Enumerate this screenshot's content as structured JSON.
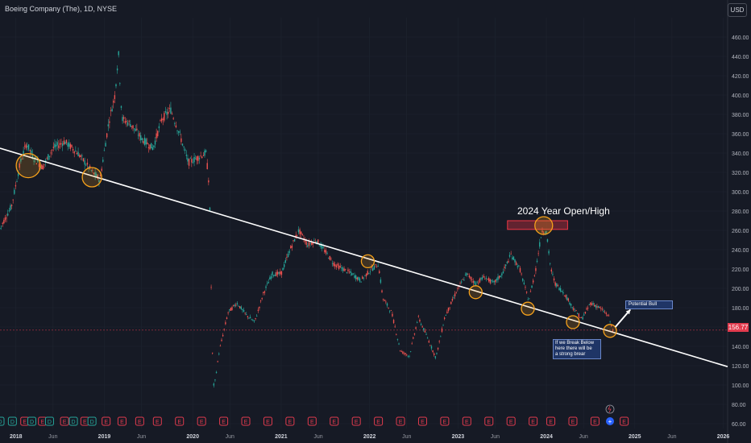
{
  "header": {
    "title": "Boeing Company (The), 1D, NYSE",
    "currency_button": "USD"
  },
  "price_tag": {
    "label": "156.77",
    "color": "#e23b4e"
  },
  "annotations": {
    "year_label": "2024 Year Open/High",
    "potential_bull": "Potential Bull",
    "break_below_lines": [
      "If we Break Below",
      "here there will be",
      "a strong brear"
    ]
  },
  "event_markers": {
    "types": [
      "dividend",
      "earnings"
    ],
    "earnings_letter": "E",
    "dividend_letter": "D",
    "plus_symbol": "+"
  },
  "colors": {
    "background": "#161a25",
    "up": "#26a69a",
    "down": "#ef5350",
    "trendline": "#ffffff",
    "circle": "#f7a21b",
    "grid": "#1f2430"
  },
  "chart_data": {
    "type": "candlestick",
    "symbol": "BA",
    "title": "Boeing Company (The), 1D, NYSE",
    "x_tick_labels": [
      "2018",
      "Jun",
      "2019",
      "Jun",
      "2020",
      "Jun",
      "2021",
      "Jun",
      "2022",
      "Jun",
      "2023",
      "Jun",
      "2024",
      "Jun",
      "2025",
      "Jun",
      "2026"
    ],
    "x_tick_years": [
      2018.0,
      2018.42,
      2019.0,
      2019.42,
      2020.0,
      2020.42,
      2021.0,
      2021.42,
      2022.0,
      2022.42,
      2023.0,
      2023.42,
      2024.0,
      2024.42,
      2025.0,
      2025.42,
      2026.0
    ],
    "y_ticks": [
      60,
      80,
      100,
      120,
      140,
      160,
      180,
      200,
      220,
      240,
      260,
      280,
      300,
      320,
      340,
      360,
      380,
      400,
      420,
      440,
      460
    ],
    "y_tick_labels": [
      "60.00",
      "80.00",
      "100.00",
      "120.00",
      "140.00",
      "160.00",
      "180.00",
      "200.00",
      "220.00",
      "240.00",
      "260.00",
      "280.00",
      "300.00",
      "320.00",
      "340.00",
      "360.00",
      "380.00",
      "400.00",
      "420.00",
      "440.00",
      "460.00"
    ],
    "ylim": [
      55,
      480
    ],
    "xlim": [
      2017.82,
      2026.05
    ],
    "last_price": 156.77,
    "price_path": [
      [
        2017.82,
        262
      ],
      [
        2017.95,
        285
      ],
      [
        2018.05,
        330
      ],
      [
        2018.12,
        350
      ],
      [
        2018.2,
        335
      ],
      [
        2018.3,
        325
      ],
      [
        2018.42,
        345
      ],
      [
        2018.55,
        352
      ],
      [
        2018.7,
        340
      ],
      [
        2018.85,
        322
      ],
      [
        2018.95,
        312
      ],
      [
        2019.05,
        372
      ],
      [
        2019.12,
        400
      ],
      [
        2019.16,
        444
      ],
      [
        2019.2,
        375
      ],
      [
        2019.3,
        370
      ],
      [
        2019.42,
        355
      ],
      [
        2019.55,
        345
      ],
      [
        2019.65,
        375
      ],
      [
        2019.75,
        385
      ],
      [
        2019.85,
        360
      ],
      [
        2019.95,
        330
      ],
      [
        2020.05,
        335
      ],
      [
        2020.15,
        340
      ],
      [
        2020.19,
        302
      ],
      [
        2020.22,
        140
      ],
      [
        2020.24,
        96
      ],
      [
        2020.3,
        135
      ],
      [
        2020.4,
        175
      ],
      [
        2020.5,
        185
      ],
      [
        2020.6,
        173
      ],
      [
        2020.7,
        165
      ],
      [
        2020.8,
        195
      ],
      [
        2020.9,
        215
      ],
      [
        2021.0,
        215
      ],
      [
        2021.1,
        240
      ],
      [
        2021.2,
        260
      ],
      [
        2021.3,
        245
      ],
      [
        2021.4,
        250
      ],
      [
        2021.5,
        238
      ],
      [
        2021.6,
        225
      ],
      [
        2021.7,
        220
      ],
      [
        2021.8,
        215
      ],
      [
        2021.9,
        208
      ],
      [
        2022.0,
        218
      ],
      [
        2022.1,
        225
      ],
      [
        2022.15,
        190
      ],
      [
        2022.25,
        175
      ],
      [
        2022.35,
        135
      ],
      [
        2022.45,
        130
      ],
      [
        2022.55,
        170
      ],
      [
        2022.65,
        150
      ],
      [
        2022.75,
        128
      ],
      [
        2022.85,
        170
      ],
      [
        2022.95,
        190
      ],
      [
        2023.0,
        200
      ],
      [
        2023.1,
        215
      ],
      [
        2023.2,
        205
      ],
      [
        2023.3,
        212
      ],
      [
        2023.4,
        205
      ],
      [
        2023.5,
        215
      ],
      [
        2023.6,
        235
      ],
      [
        2023.7,
        220
      ],
      [
        2023.8,
        187
      ],
      [
        2023.88,
        220
      ],
      [
        2023.95,
        260
      ],
      [
        2024.0,
        258
      ],
      [
        2024.05,
        220
      ],
      [
        2024.1,
        205
      ],
      [
        2024.2,
        195
      ],
      [
        2024.3,
        180
      ],
      [
        2024.4,
        168
      ],
      [
        2024.5,
        185
      ],
      [
        2024.6,
        180
      ],
      [
        2024.7,
        172
      ],
      [
        2024.75,
        156.77
      ]
    ],
    "trendline": [
      [
        2017.82,
        345
      ],
      [
        2026.05,
        119
      ]
    ],
    "highlight_circles": [
      [
        2018.14,
        327
      ],
      [
        2018.86,
        315
      ],
      [
        2021.98,
        228
      ],
      [
        2023.2,
        196
      ],
      [
        2023.79,
        179
      ],
      [
        2024.3,
        165
      ],
      [
        2024.72,
        156
      ]
    ],
    "highlight_box": {
      "x": [
        2023.56,
        2024.24
      ],
      "y": [
        261,
        270
      ]
    },
    "arrow": [
      [
        2024.78,
        160
      ],
      [
        2024.95,
        178
      ]
    ],
    "horizontal_line": 156.77,
    "events": [
      [
        "D",
        2017.82
      ],
      [
        "D",
        2017.96
      ],
      [
        "E",
        2018.1
      ],
      [
        "D",
        2018.18
      ],
      [
        "E",
        2018.3
      ],
      [
        "D",
        2018.38
      ],
      [
        "E",
        2018.55
      ],
      [
        "D",
        2018.65
      ],
      [
        "E",
        2018.78
      ],
      [
        "D",
        2018.86
      ],
      [
        "E",
        2019.02
      ],
      [
        "E",
        2019.2
      ],
      [
        "E",
        2019.4
      ],
      [
        "E",
        2019.6
      ],
      [
        "E",
        2019.85
      ],
      [
        "E",
        2020.1
      ],
      [
        "E",
        2020.35
      ],
      [
        "E",
        2020.6
      ],
      [
        "E",
        2020.85
      ],
      [
        "E",
        2021.1
      ],
      [
        "E",
        2021.35
      ],
      [
        "E",
        2021.6
      ],
      [
        "E",
        2021.85
      ],
      [
        "E",
        2022.1
      ],
      [
        "E",
        2022.35
      ],
      [
        "E",
        2022.6
      ],
      [
        "E",
        2022.85
      ],
      [
        "E",
        2023.1
      ],
      [
        "E",
        2023.35
      ],
      [
        "E",
        2023.6
      ],
      [
        "E",
        2023.85
      ],
      [
        "E",
        2024.05
      ],
      [
        "E",
        2024.3
      ],
      [
        "E",
        2024.55
      ],
      [
        "E",
        2024.88
      ]
    ]
  }
}
